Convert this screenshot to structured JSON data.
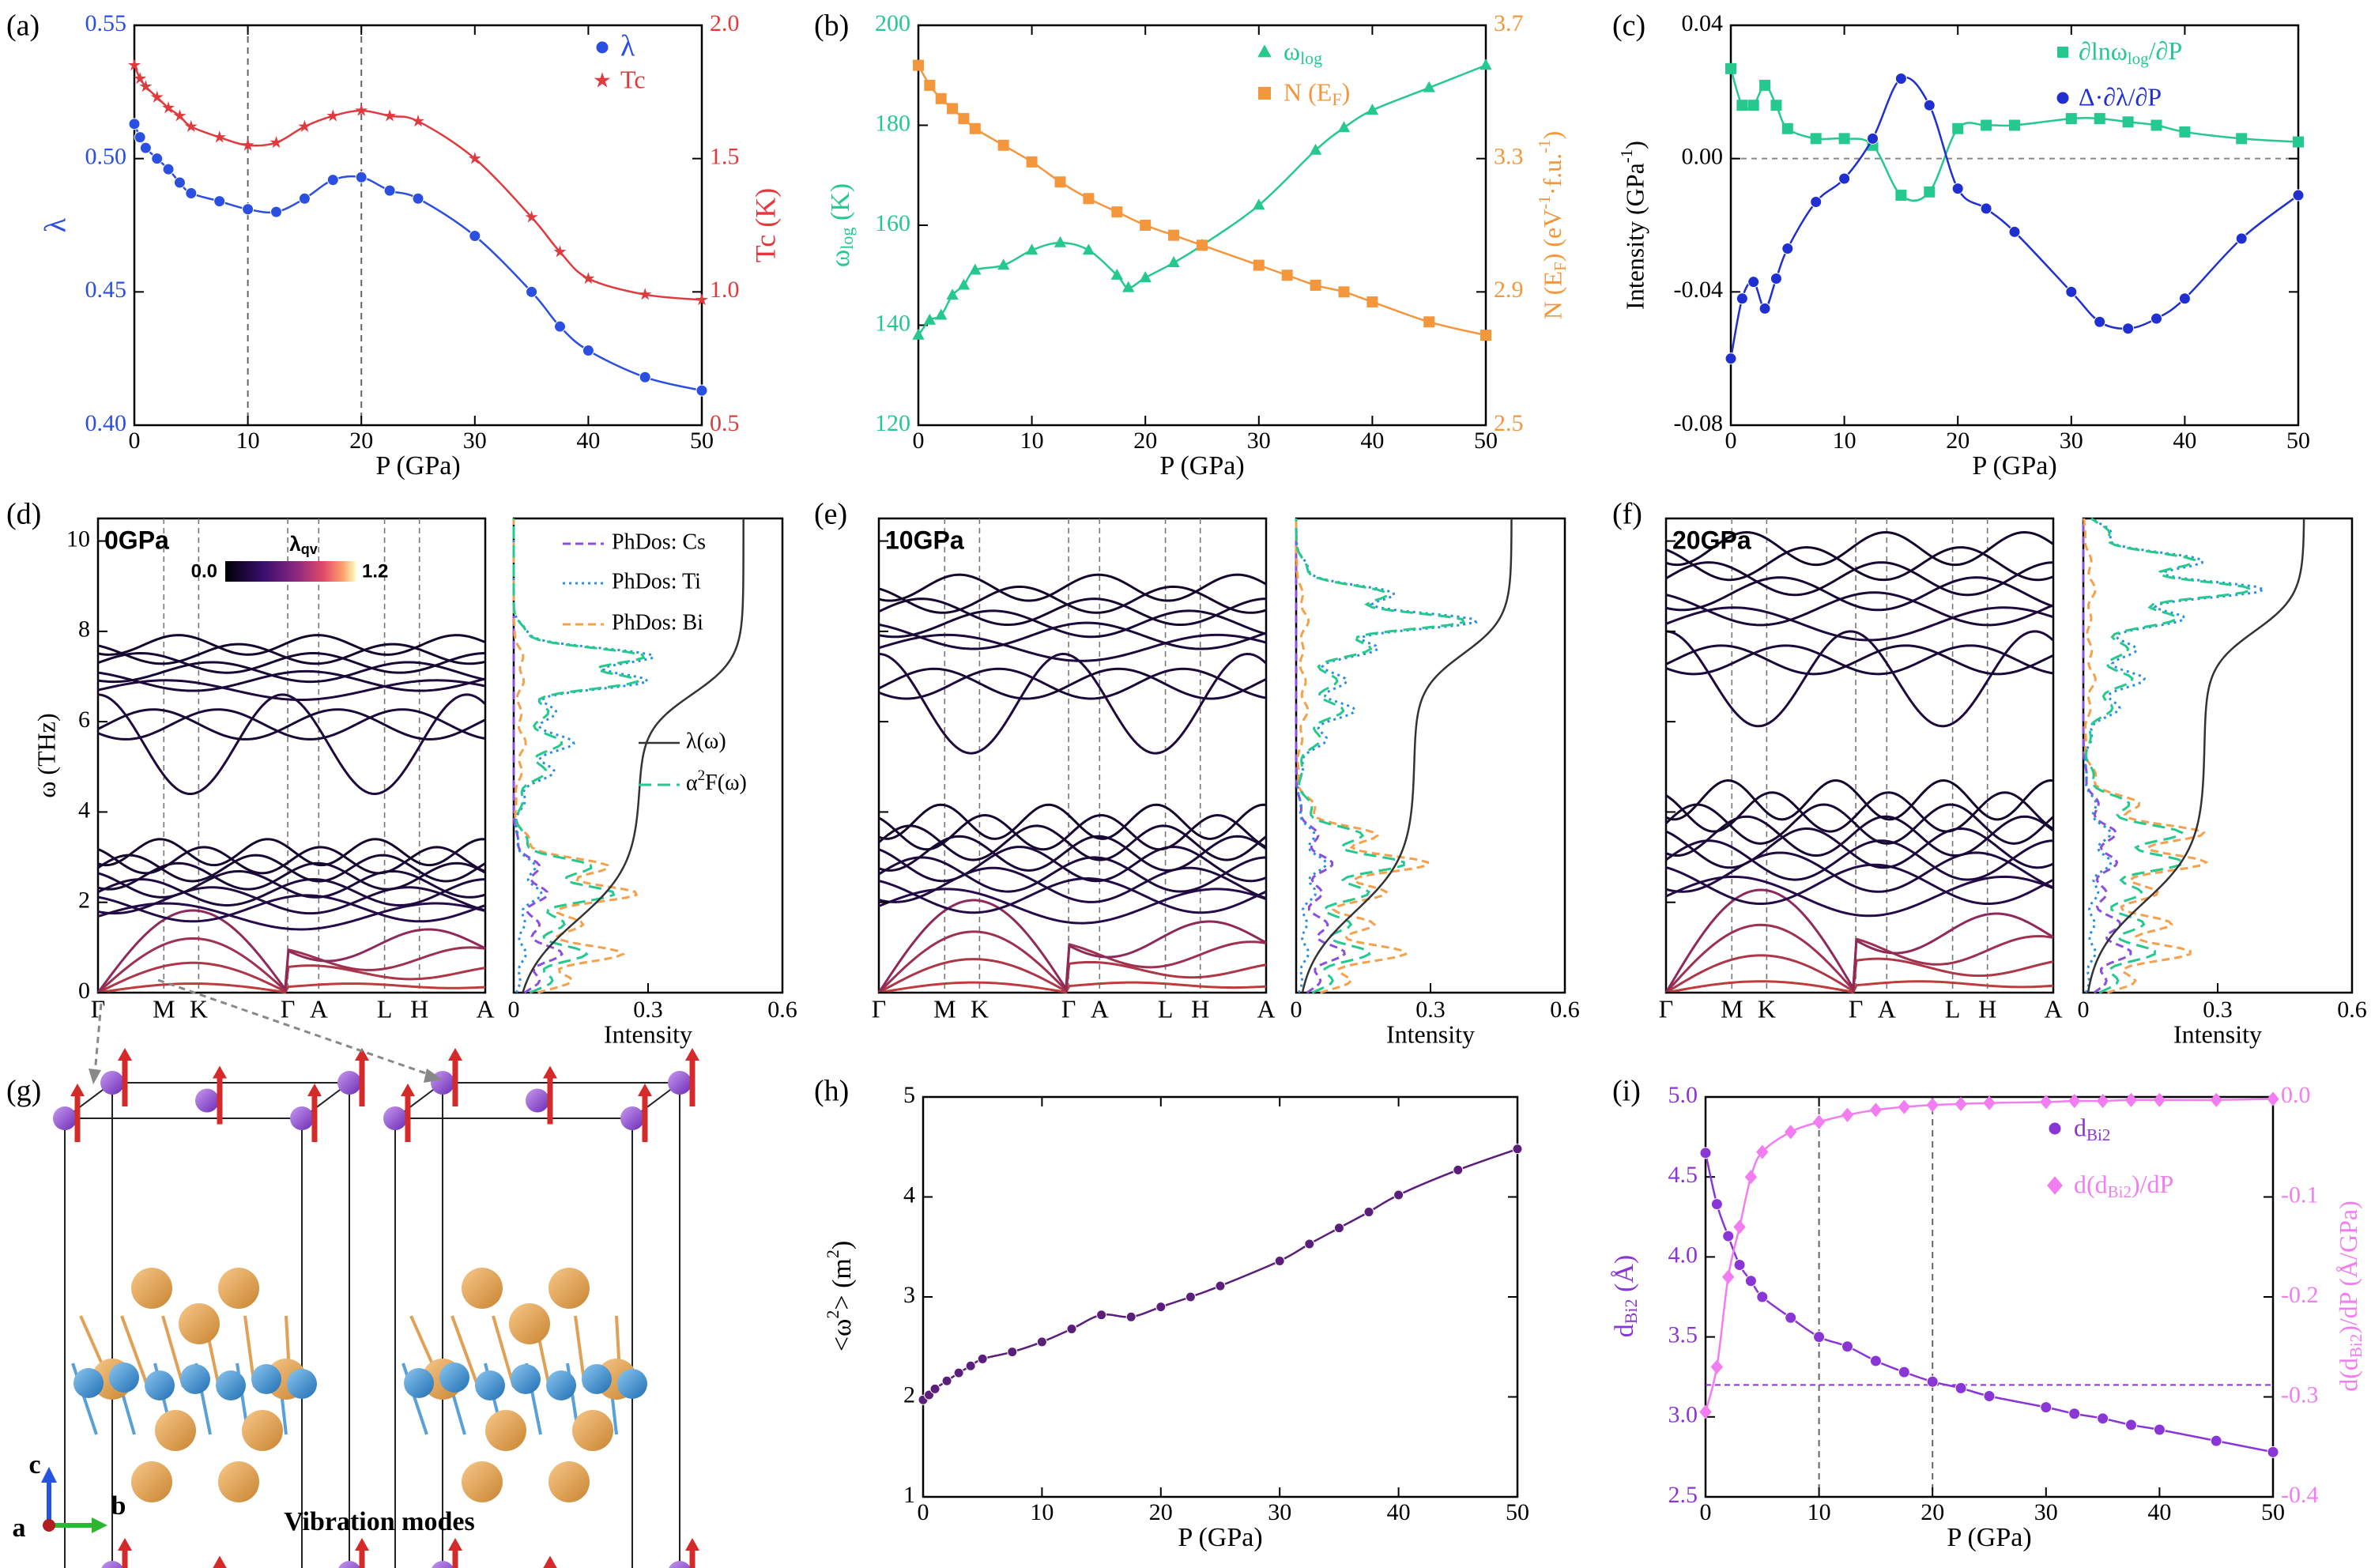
{
  "chart_data": [
    {
      "id": "a",
      "type": "line",
      "panel_label": "(a)",
      "xlabel": "P (GPa)",
      "xlim": [
        0,
        50
      ],
      "xticks": [
        0,
        10,
        20,
        30,
        40,
        50
      ],
      "ylabel": "λ",
      "ylim": [
        0.4,
        0.55
      ],
      "yticks": [
        "0.40",
        "0.45",
        "0.50",
        "0.55"
      ],
      "y2label": "Tc (K)",
      "y2lim": [
        0.5,
        2.0
      ],
      "y2ticks": [
        "0.5",
        "1.0",
        "1.5",
        "2.0"
      ],
      "vlines": [
        10,
        20
      ],
      "legend_position": "top-right",
      "series": [
        {
          "name": "λ",
          "axis": "left",
          "color": "#2b4fe0",
          "marker": "circle",
          "x": [
            0,
            0.5,
            1,
            2,
            3,
            4,
            5,
            7.5,
            10,
            12.5,
            15,
            17.5,
            20,
            22.5,
            25,
            30,
            35,
            37.5,
            40,
            45,
            50
          ],
          "y": [
            0.513,
            0.508,
            0.504,
            0.5,
            0.496,
            0.491,
            0.487,
            0.484,
            0.481,
            0.48,
            0.485,
            0.492,
            0.493,
            0.488,
            0.485,
            0.471,
            0.45,
            0.437,
            0.428,
            0.418,
            0.413
          ]
        },
        {
          "name": "Tc",
          "axis": "right",
          "color": "#e03a3e",
          "marker": "star",
          "x": [
            0,
            0.5,
            1,
            2,
            3,
            4,
            5,
            7.5,
            10,
            12.5,
            15,
            17.5,
            20,
            22.5,
            25,
            30,
            35,
            37.5,
            40,
            45,
            50
          ],
          "y": [
            1.85,
            1.8,
            1.77,
            1.73,
            1.69,
            1.66,
            1.62,
            1.58,
            1.55,
            1.56,
            1.62,
            1.66,
            1.68,
            1.66,
            1.64,
            1.5,
            1.28,
            1.15,
            1.05,
            0.99,
            0.97
          ]
        }
      ]
    },
    {
      "id": "b",
      "type": "line",
      "panel_label": "(b)",
      "xlabel": "P (GPa)",
      "xlim": [
        0,
        50
      ],
      "xticks": [
        0,
        10,
        20,
        30,
        40,
        50
      ],
      "ylabel": "ωlog (K)",
      "ylim": [
        120,
        200
      ],
      "yticks": [
        "120",
        "140",
        "160",
        "180",
        "200"
      ],
      "y2label": "N (EF) (eV-1·f.u.-1)",
      "y2lim": [
        2.5,
        3.7
      ],
      "y2ticks": [
        "2.5",
        "2.9",
        "3.3",
        "3.7"
      ],
      "legend_position": "top-right",
      "series": [
        {
          "name": "ωlog",
          "axis": "left",
          "color": "#26c98d",
          "marker": "triangle",
          "x": [
            0,
            1,
            2,
            3,
            4,
            5,
            7.5,
            10,
            12.5,
            15,
            17.5,
            18.5,
            20,
            22.5,
            25,
            30,
            35,
            37.5,
            40,
            45,
            50
          ],
          "y": [
            138,
            141,
            142,
            146,
            148,
            151,
            152,
            155,
            156.5,
            155,
            150,
            147.5,
            149.5,
            152.5,
            156,
            164,
            175,
            179.5,
            183,
            187.5,
            192
          ]
        },
        {
          "name": "N (EF)",
          "axis": "right",
          "color": "#f4963c",
          "marker": "square",
          "x": [
            0,
            1,
            2,
            3,
            4,
            5,
            7.5,
            10,
            12.5,
            15,
            17.5,
            20,
            22.5,
            25,
            30,
            32.5,
            35,
            37.5,
            40,
            45,
            50
          ],
          "y": [
            3.58,
            3.52,
            3.48,
            3.45,
            3.42,
            3.39,
            3.34,
            3.29,
            3.23,
            3.18,
            3.14,
            3.1,
            3.07,
            3.04,
            2.98,
            2.95,
            2.92,
            2.9,
            2.87,
            2.81,
            2.77
          ]
        }
      ]
    },
    {
      "id": "c",
      "type": "line",
      "panel_label": "(c)",
      "xlabel": "P (GPa)",
      "xlim": [
        0,
        50
      ],
      "xticks": [
        0,
        10,
        20,
        30,
        40,
        50
      ],
      "ylabel": "Intensity (GPa-1)",
      "ylim": [
        -0.08,
        0.04
      ],
      "yticks": [
        "-0.08",
        "-0.04",
        "0.00",
        "0.04"
      ],
      "hline": 0,
      "legend_position": "top-right",
      "series": [
        {
          "name": "∂lnωlog/∂P",
          "color": "#26c98d",
          "marker": "square",
          "x": [
            0,
            1,
            2,
            3,
            4,
            5,
            7.5,
            10,
            12.5,
            15,
            17.5,
            20,
            22.5,
            25,
            30,
            32.5,
            35,
            37.5,
            40,
            45,
            50
          ],
          "y": [
            0.027,
            0.016,
            0.016,
            0.022,
            0.016,
            0.009,
            0.006,
            0.006,
            0.004,
            -0.011,
            -0.01,
            0.009,
            0.01,
            0.01,
            0.012,
            0.012,
            0.011,
            0.01,
            0.008,
            0.006,
            0.005
          ]
        },
        {
          "name": "Δ·∂λ/∂P",
          "color": "#1f2fd1",
          "marker": "circle",
          "x": [
            0,
            1,
            2,
            3,
            4,
            5,
            7.5,
            10,
            12.5,
            15,
            17.5,
            20,
            22.5,
            25,
            30,
            32.5,
            35,
            37.5,
            40,
            45,
            50
          ],
          "y": [
            -0.06,
            -0.042,
            -0.037,
            -0.045,
            -0.036,
            -0.027,
            -0.013,
            -0.006,
            0.006,
            0.024,
            0.016,
            -0.009,
            -0.015,
            -0.022,
            -0.04,
            -0.049,
            -0.051,
            -0.048,
            -0.042,
            -0.024,
            -0.011
          ]
        }
      ]
    },
    {
      "id": "d",
      "type": "line",
      "panel_label": "(d)",
      "pressure_label": "0GPa",
      "kpath": [
        "Γ",
        "M",
        "K",
        "Γ",
        "A",
        "L",
        "H",
        "A"
      ],
      "ylabel": "ω (THz)",
      "ylim": [
        0,
        10.5
      ],
      "yticks": [
        "0",
        "2",
        "4",
        "6",
        "8",
        "10"
      ],
      "colorbar": {
        "label": "λqv",
        "min": "0.0",
        "max": "1.2"
      },
      "dos_xlabel": "Intensity",
      "dos_xticks": [
        "0",
        "0.3",
        "0.6"
      ],
      "dos_legend": [
        "PhDos: Cs",
        "PhDos: Ti",
        "PhDos: Bi",
        "λ(ω)",
        "α2F(ω)"
      ],
      "band_groups_thz": [
        [
          0,
          1.6
        ],
        [
          1.6,
          3.2
        ],
        [
          4.4,
          6.6
        ],
        [
          6.6,
          7.8
        ]
      ],
      "lambda_total": 0.513
    },
    {
      "id": "e",
      "type": "line",
      "panel_label": "(e)",
      "pressure_label": "10GPa",
      "kpath": [
        "Γ",
        "M",
        "K",
        "Γ",
        "A",
        "L",
        "H",
        "A"
      ],
      "ylim": [
        0,
        10.5
      ],
      "dos_xlabel": "Intensity",
      "dos_xticks": [
        "0",
        "0.3",
        "0.6"
      ],
      "band_groups_thz": [
        [
          0,
          1.8
        ],
        [
          1.8,
          3.9
        ],
        [
          5.3,
          7.5
        ],
        [
          7.5,
          9.1
        ]
      ],
      "lambda_total": 0.481
    },
    {
      "id": "f",
      "type": "line",
      "panel_label": "(f)",
      "pressure_label": "20GPa",
      "kpath": [
        "Γ",
        "M",
        "K",
        "Γ",
        "A",
        "L",
        "H",
        "A"
      ],
      "ylim": [
        0,
        10.5
      ],
      "dos_xlabel": "Intensity",
      "dos_xticks": [
        "0",
        "0.3",
        "0.6"
      ],
      "band_groups_thz": [
        [
          0,
          2.0
        ],
        [
          2.0,
          4.4
        ],
        [
          5.9,
          8.0
        ],
        [
          8.0,
          10.0
        ]
      ],
      "lambda_total": 0.493
    },
    {
      "id": "g",
      "type": "diagram",
      "panel_label": "(g)",
      "caption": "Vibration modes",
      "axes_labels": [
        "c",
        "b",
        "a"
      ]
    },
    {
      "id": "h",
      "type": "line",
      "panel_label": "(h)",
      "xlabel": "P (GPa)",
      "xlim": [
        0,
        50
      ],
      "xticks": [
        0,
        10,
        20,
        30,
        40,
        50
      ],
      "ylabel": "<ω2> (m2)",
      "ylim": [
        1,
        5
      ],
      "yticks": [
        "1",
        "2",
        "3",
        "4",
        "5"
      ],
      "series": [
        {
          "name": "<ω2>",
          "color": "#5b1e7a",
          "marker": "circle",
          "x": [
            0,
            0.5,
            1,
            2,
            3,
            4,
            5,
            7.5,
            10,
            12.5,
            15,
            17.5,
            20,
            22.5,
            25,
            30,
            32.5,
            35,
            37.5,
            40,
            45,
            50
          ],
          "y": [
            1.97,
            2.02,
            2.08,
            2.16,
            2.24,
            2.31,
            2.38,
            2.45,
            2.55,
            2.68,
            2.82,
            2.8,
            2.9,
            3.0,
            3.11,
            3.36,
            3.53,
            3.69,
            3.85,
            4.02,
            4.27,
            4.48
          ]
        }
      ]
    },
    {
      "id": "i",
      "type": "line",
      "panel_label": "(i)",
      "xlabel": "P (GPa)",
      "xlim": [
        0,
        50
      ],
      "xticks": [
        0,
        10,
        20,
        30,
        40,
        50
      ],
      "ylabel": "dBi2 (Å)",
      "ylim": [
        2.5,
        5.0
      ],
      "yticks": [
        "2.5",
        "3.0",
        "3.5",
        "4.0",
        "4.5",
        "5.0"
      ],
      "y2label": "d(dBi2)/dP (Å/GPa)",
      "y2lim": [
        -0.4,
        0.0
      ],
      "y2ticks": [
        "-0.4",
        "-0.3",
        "-0.2",
        "-0.1",
        "0.0"
      ],
      "vlines": [
        10,
        20
      ],
      "hline_left": 3.2,
      "legend_position": "top-right",
      "series": [
        {
          "name": "dBi2",
          "axis": "left",
          "color": "#8a35d6",
          "marker": "circle",
          "x": [
            0,
            1,
            2,
            3,
            4,
            5,
            7.5,
            10,
            12.5,
            15,
            17.5,
            20,
            22.5,
            25,
            30,
            32.5,
            35,
            37.5,
            40,
            45,
            50
          ],
          "y": [
            4.65,
            4.33,
            4.13,
            3.95,
            3.85,
            3.75,
            3.62,
            3.5,
            3.44,
            3.35,
            3.28,
            3.22,
            3.18,
            3.13,
            3.06,
            3.02,
            2.99,
            2.95,
            2.92,
            2.85,
            2.78
          ]
        },
        {
          "name": "d(dBi2)/dP",
          "axis": "right",
          "color": "#f27df0",
          "marker": "diamond",
          "x": [
            0,
            1,
            2,
            3,
            4,
            5,
            7.5,
            10,
            12.5,
            15,
            17.5,
            20,
            22.5,
            25,
            30,
            32.5,
            35,
            37.5,
            40,
            45,
            50
          ],
          "y": [
            -0.315,
            -0.27,
            -0.18,
            -0.13,
            -0.08,
            -0.055,
            -0.035,
            -0.025,
            -0.018,
            -0.013,
            -0.01,
            -0.008,
            -0.007,
            -0.006,
            -0.005,
            -0.004,
            -0.004,
            -0.003,
            -0.003,
            -0.003,
            -0.002
          ]
        }
      ]
    }
  ]
}
